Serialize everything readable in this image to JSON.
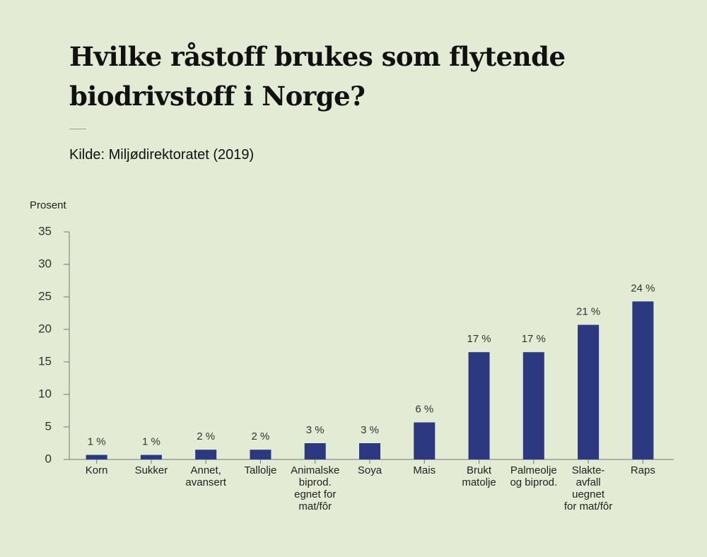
{
  "chart_data": {
    "type": "bar",
    "title": "Hvilke råstoff brukes som flytende\nbiodrivstoff  i Norge?",
    "subtitle": "Kilde: Miljødirektoratet (2019)",
    "y_axis_label": "Prosent",
    "categories": [
      "Korn",
      "Sukker",
      "Annet,\navansert",
      "Tallolje",
      "Animalske\nbiprod.\negnet for\nmat/fôr",
      "Soya",
      "Mais",
      "Brukt\nmatolje",
      "Palmeolje\nog biprod.",
      "Slakte-\navfall\nuegnet\nfor mat/fôr",
      "Raps"
    ],
    "values": [
      0.7,
      0.7,
      1.5,
      1.5,
      2.5,
      2.5,
      5.7,
      16.5,
      16.5,
      20.7,
      24.3
    ],
    "value_labels": [
      "1 %",
      "1 %",
      "2 %",
      "2 %",
      "3 %",
      "3 %",
      "6 %",
      "17 %",
      "17 %",
      "21 %",
      "24 %"
    ],
    "color": "#2b3a80",
    "ylim": [
      0,
      35
    ],
    "yticks": [
      0,
      5,
      10,
      15,
      20,
      25,
      30,
      35
    ],
    "grid": false
  }
}
